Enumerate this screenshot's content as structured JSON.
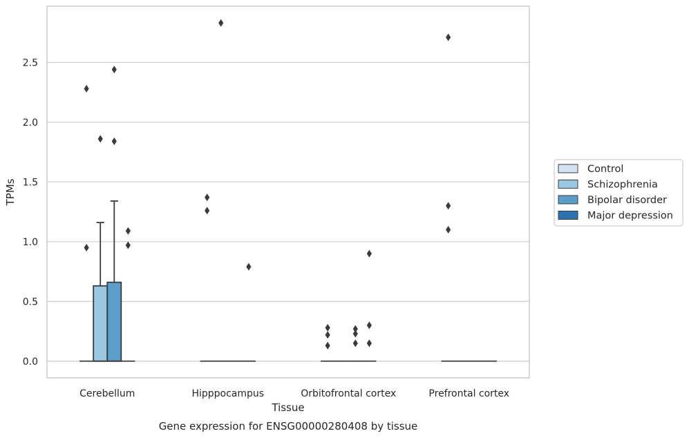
{
  "chart_data": {
    "type": "box",
    "title": "Gene expression for ENSG00000280408 by tissue",
    "xlabel": "Tissue",
    "ylabel": "TPMs",
    "ylim": [
      -0.14,
      2.97
    ],
    "yticks": [
      "0.0",
      "0.5",
      "1.0",
      "1.5",
      "2.0",
      "2.5"
    ],
    "grid": true,
    "legend_position": "right",
    "categories": [
      "Cerebellum",
      "Hipppocampus",
      "Orbitofrontal cortex",
      "Prefrontal cortex"
    ],
    "series": [
      {
        "name": "Control",
        "color": "#d2e3f3",
        "boxes": [
          {
            "q1": 0,
            "median": 0,
            "q3": 0,
            "whisker_low": 0,
            "whisker_high": 0,
            "outliers": [
              0.95,
              2.28
            ]
          },
          {
            "q1": 0,
            "median": 0,
            "q3": 0,
            "whisker_low": 0,
            "whisker_high": 0,
            "outliers": [
              1.26,
              1.37
            ]
          },
          {
            "q1": 0,
            "median": 0,
            "q3": 0,
            "whisker_low": 0,
            "whisker_high": 0,
            "outliers": [
              0.13,
              0.22,
              0.28
            ]
          },
          {
            "q1": 0,
            "median": 0,
            "q3": 0,
            "whisker_low": 0,
            "whisker_high": 0,
            "outliers": [
              1.1,
              1.3,
              2.71
            ]
          }
        ]
      },
      {
        "name": "Schizophrenia",
        "color": "#9ac8e0",
        "boxes": [
          {
            "q1": 0,
            "median": 0,
            "q3": 0.63,
            "whisker_low": 0,
            "whisker_high": 1.16,
            "outliers": [
              1.86
            ]
          },
          {
            "q1": 0,
            "median": 0,
            "q3": 0,
            "whisker_low": 0,
            "whisker_high": 0,
            "outliers": [
              2.83
            ]
          },
          {
            "q1": 0,
            "median": 0,
            "q3": 0,
            "whisker_low": 0,
            "whisker_high": 0,
            "outliers": []
          },
          {
            "q1": 0,
            "median": 0,
            "q3": 0,
            "whisker_low": 0,
            "whisker_high": 0,
            "outliers": []
          }
        ]
      },
      {
        "name": "Bipolar disorder",
        "color": "#5a9ec9",
        "boxes": [
          {
            "q1": 0,
            "median": 0,
            "q3": 0.66,
            "whisker_low": 0,
            "whisker_high": 1.34,
            "outliers": [
              1.84,
              2.44
            ]
          },
          {
            "q1": 0,
            "median": 0,
            "q3": 0,
            "whisker_low": 0,
            "whisker_high": 0,
            "outliers": []
          },
          {
            "q1": 0,
            "median": 0,
            "q3": 0,
            "whisker_low": 0,
            "whisker_high": 0,
            "outliers": [
              0.15,
              0.23,
              0.27
            ]
          },
          {
            "q1": 0,
            "median": 0,
            "q3": 0,
            "whisker_low": 0,
            "whisker_high": 0,
            "outliers": []
          }
        ]
      },
      {
        "name": "Major depression",
        "color": "#2c72b0",
        "boxes": [
          {
            "q1": 0,
            "median": 0,
            "q3": 0,
            "whisker_low": 0,
            "whisker_high": 0,
            "outliers": [
              0.97,
              1.09
            ]
          },
          {
            "q1": 0,
            "median": 0,
            "q3": 0,
            "whisker_low": 0,
            "whisker_high": 0,
            "outliers": [
              0.79
            ]
          },
          {
            "q1": 0,
            "median": 0,
            "q3": 0,
            "whisker_low": 0,
            "whisker_high": 0,
            "outliers": [
              0.15,
              0.3,
              0.9
            ]
          },
          {
            "q1": 0,
            "median": 0,
            "q3": 0,
            "whisker_low": 0,
            "whisker_high": 0,
            "outliers": []
          }
        ]
      }
    ]
  }
}
